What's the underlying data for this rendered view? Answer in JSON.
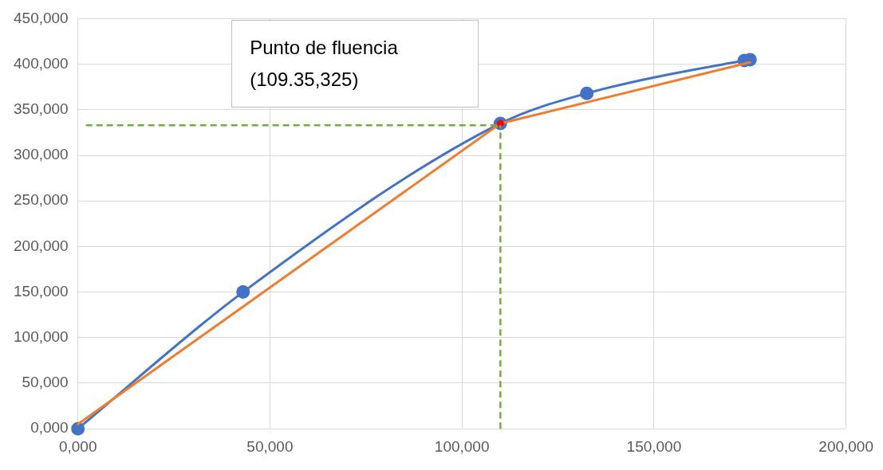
{
  "chart_data": {
    "type": "line",
    "annotations": [
      "Punto de fluencia\n(109.35,325)"
    ],
    "series": [
      {
        "color": "#4472c4",
        "marker": "circle",
        "x": [
          0,
          43,
          110,
          132.5,
          173.5,
          175
        ],
        "values": [
          0,
          150,
          335,
          368,
          404,
          405
        ]
      },
      {
        "color": "#ed7d31",
        "marker": "none",
        "x": [
          0,
          110,
          175
        ],
        "values": [
          5,
          335,
          402
        ]
      },
      {
        "type": "scatter",
        "color": "#ff0000",
        "marker": "circle",
        "x": [
          110
        ],
        "values": [
          335
        ]
      }
    ],
    "ref_lines": [
      {
        "axis": "x",
        "value": 110,
        "color": "#70ad47",
        "line_style": "dashed"
      },
      {
        "axis": "y",
        "value": 333,
        "color": "#70ad47",
        "line_style": "dashed"
      }
    ],
    "xlim": [
      0,
      200
    ],
    "xticks": [
      {
        "value": 0,
        "label": "0,000"
      },
      {
        "value": 50,
        "label": "50,000"
      },
      {
        "value": 100,
        "label": "100,000"
      },
      {
        "value": 150,
        "label": "150,000"
      },
      {
        "value": 200,
        "label": "200,000"
      }
    ],
    "ylim": [
      0,
      450
    ],
    "yticks": [
      {
        "value": 0,
        "label": "0,000"
      },
      {
        "value": 50,
        "label": "50,000"
      },
      {
        "value": 100,
        "label": "100,000"
      },
      {
        "value": 150,
        "label": "150,000"
      },
      {
        "value": 200,
        "label": "200,000"
      },
      {
        "value": 250,
        "label": "250,000"
      },
      {
        "value": 300,
        "label": "300,000"
      },
      {
        "value": 350,
        "label": "350,000"
      },
      {
        "value": 400,
        "label": "400,000"
      },
      {
        "value": 450,
        "label": "450,000"
      }
    ],
    "grid": true,
    "legend": false
  }
}
